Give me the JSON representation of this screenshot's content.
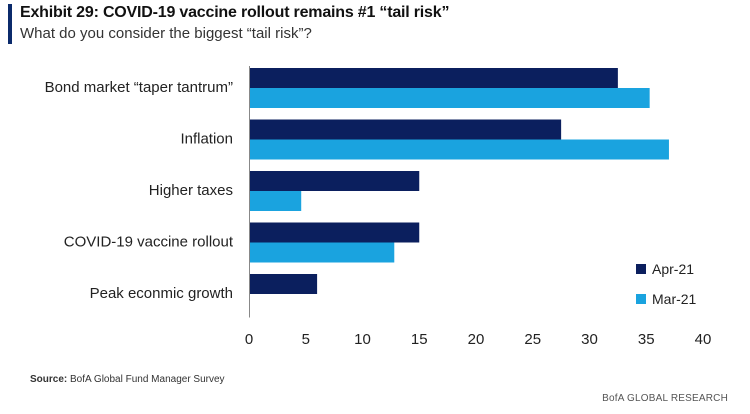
{
  "header": {
    "title": "Exhibit 29: COVID-19 vaccine rollout remains #1 “tail risk”",
    "subtitle": "What do you consider the biggest “tail risk”?"
  },
  "footer": {
    "source_label": "Source:",
    "source_text": "BofA Global Fund Manager Survey",
    "brand": "BofA GLOBAL RESEARCH"
  },
  "colors": {
    "apr21": "#0b1f5e",
    "mar21": "#1aa3df",
    "accent": "#0b2a6b"
  },
  "chart_data": {
    "type": "bar",
    "orientation": "horizontal",
    "title": "",
    "xlabel": "",
    "ylabel": "",
    "categories": [
      "Bond market “taper tantrum”",
      "Inflation",
      "Higher taxes",
      "COVID-19 vaccine rollout",
      "Peak econmic growth"
    ],
    "series": [
      {
        "name": "Apr-21",
        "values": [
          32.5,
          27.5,
          15.0,
          15.0,
          6.0
        ]
      },
      {
        "name": "Mar-21",
        "values": [
          35.3,
          37.0,
          4.6,
          12.8,
          null
        ]
      }
    ],
    "xlim": [
      0,
      40
    ],
    "xticks": [
      0,
      5,
      10,
      15,
      20,
      25,
      30,
      35,
      40
    ],
    "grid": false,
    "legend_position": "bottom-right"
  }
}
